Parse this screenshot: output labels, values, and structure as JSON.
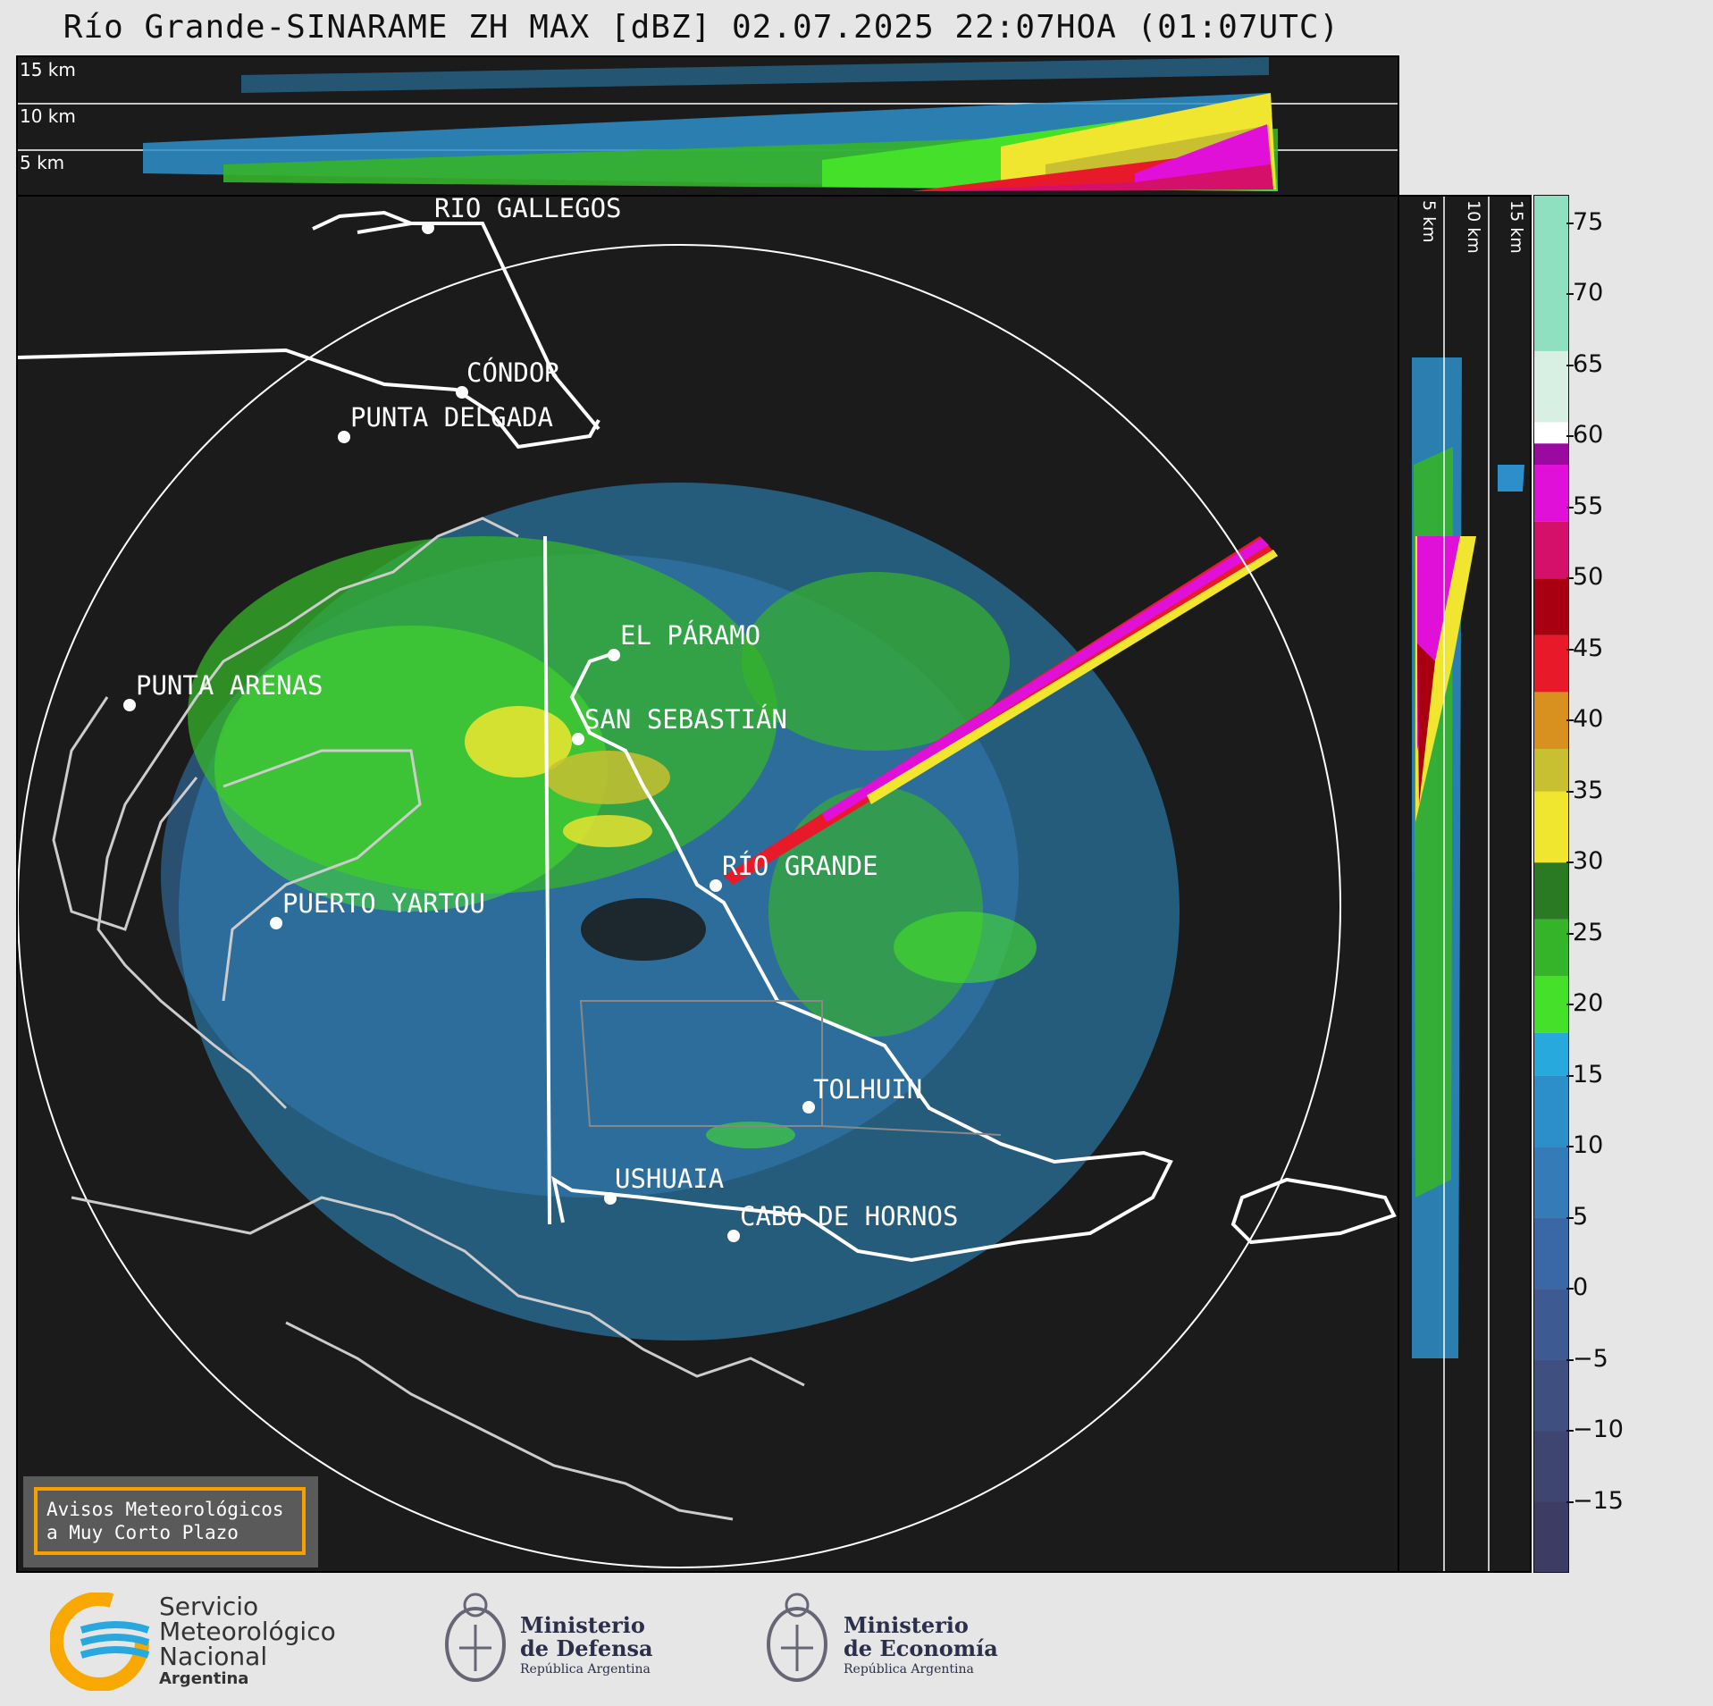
{
  "title": "Río Grande-SINARAME ZH MAX [dBZ] 02.07.2025 22:07HOA (01:07UTC)",
  "top_panel": {
    "heights": [
      "15 km",
      "10 km",
      "5 km"
    ]
  },
  "side_panel": {
    "heights": [
      "5 km",
      "10 km",
      "15 km"
    ]
  },
  "cities": [
    {
      "name": "RÍO GALLEGOS"
    },
    {
      "name": "CÓNDOR"
    },
    {
      "name": "PUNTA DELGADA"
    },
    {
      "name": "EL PÁRAMO"
    },
    {
      "name": "PUNTA ARENAS"
    },
    {
      "name": "SAN SEBASTIÁN"
    },
    {
      "name": "RÍO GRANDE"
    },
    {
      "name": "PUERTO YARTOU"
    },
    {
      "name": "TOLHUIN"
    },
    {
      "name": "USHUAIA"
    },
    {
      "name": "CABO DE HORNOS"
    }
  ],
  "colorbar": {
    "unit": "dBZ",
    "range": [
      -20,
      77
    ],
    "ticks": [
      "75",
      "70",
      "65",
      "60",
      "55",
      "50",
      "45",
      "40",
      "35",
      "30",
      "25",
      "20",
      "15",
      "10",
      "5",
      "0",
      "−5",
      "−10",
      "−15"
    ],
    "tick_values": [
      75,
      70,
      65,
      60,
      55,
      50,
      45,
      40,
      35,
      30,
      25,
      20,
      15,
      10,
      5,
      0,
      -5,
      -10,
      -15
    ],
    "segments": [
      {
        "from": -20,
        "to": -15,
        "color": "#3c3c64"
      },
      {
        "from": -15,
        "to": -10,
        "color": "#3e4570"
      },
      {
        "from": -10,
        "to": -5,
        "color": "#3f4f80"
      },
      {
        "from": -5,
        "to": 0,
        "color": "#3e5a92"
      },
      {
        "from": 0,
        "to": 5,
        "color": "#3a68a6"
      },
      {
        "from": 5,
        "to": 10,
        "color": "#357bb8"
      },
      {
        "from": 10,
        "to": 15,
        "color": "#2d8fca"
      },
      {
        "from": 15,
        "to": 18,
        "color": "#27a9dd"
      },
      {
        "from": 18,
        "to": 22,
        "color": "#44e02a"
      },
      {
        "from": 22,
        "to": 26,
        "color": "#35b42a"
      },
      {
        "from": 26,
        "to": 30,
        "color": "#2a7a24"
      },
      {
        "from": 30,
        "to": 35,
        "color": "#f0e630"
      },
      {
        "from": 35,
        "to": 38,
        "color": "#c8c030"
      },
      {
        "from": 38,
        "to": 42,
        "color": "#d8901e"
      },
      {
        "from": 42,
        "to": 46,
        "color": "#e81a2a"
      },
      {
        "from": 46,
        "to": 50,
        "color": "#a80010"
      },
      {
        "from": 50,
        "to": 54,
        "color": "#d4106a"
      },
      {
        "from": 54,
        "to": 58,
        "color": "#e010d8"
      },
      {
        "from": 58,
        "to": 59.5,
        "color": "#9a0aa0"
      },
      {
        "from": 59.5,
        "to": 61,
        "color": "#ffffff"
      },
      {
        "from": 61,
        "to": 66,
        "color": "#d8f0e4"
      },
      {
        "from": 66,
        "to": 77,
        "color": "#8ee0c0"
      }
    ]
  },
  "notice": {
    "line1": "Avisos Meteorológicos",
    "line2": "a Muy Corto Plazo"
  },
  "logos": {
    "smn": {
      "line1": "Servicio",
      "line2": "Meteorológico",
      "line3": "Nacional",
      "line4": "Argentina"
    },
    "defensa": {
      "line1": "Ministerio",
      "line2": "de Defensa",
      "line3": "República Argentina"
    },
    "economia": {
      "line1": "Ministerio",
      "line2": "de Economía",
      "line3": "República Argentina"
    }
  },
  "colors": {
    "background": "#e6e6e6",
    "panel": "#1b1b1b",
    "notice_border": "#f5a200",
    "smn_orange": "#f9a800",
    "smn_blue": "#29a8e0"
  }
}
